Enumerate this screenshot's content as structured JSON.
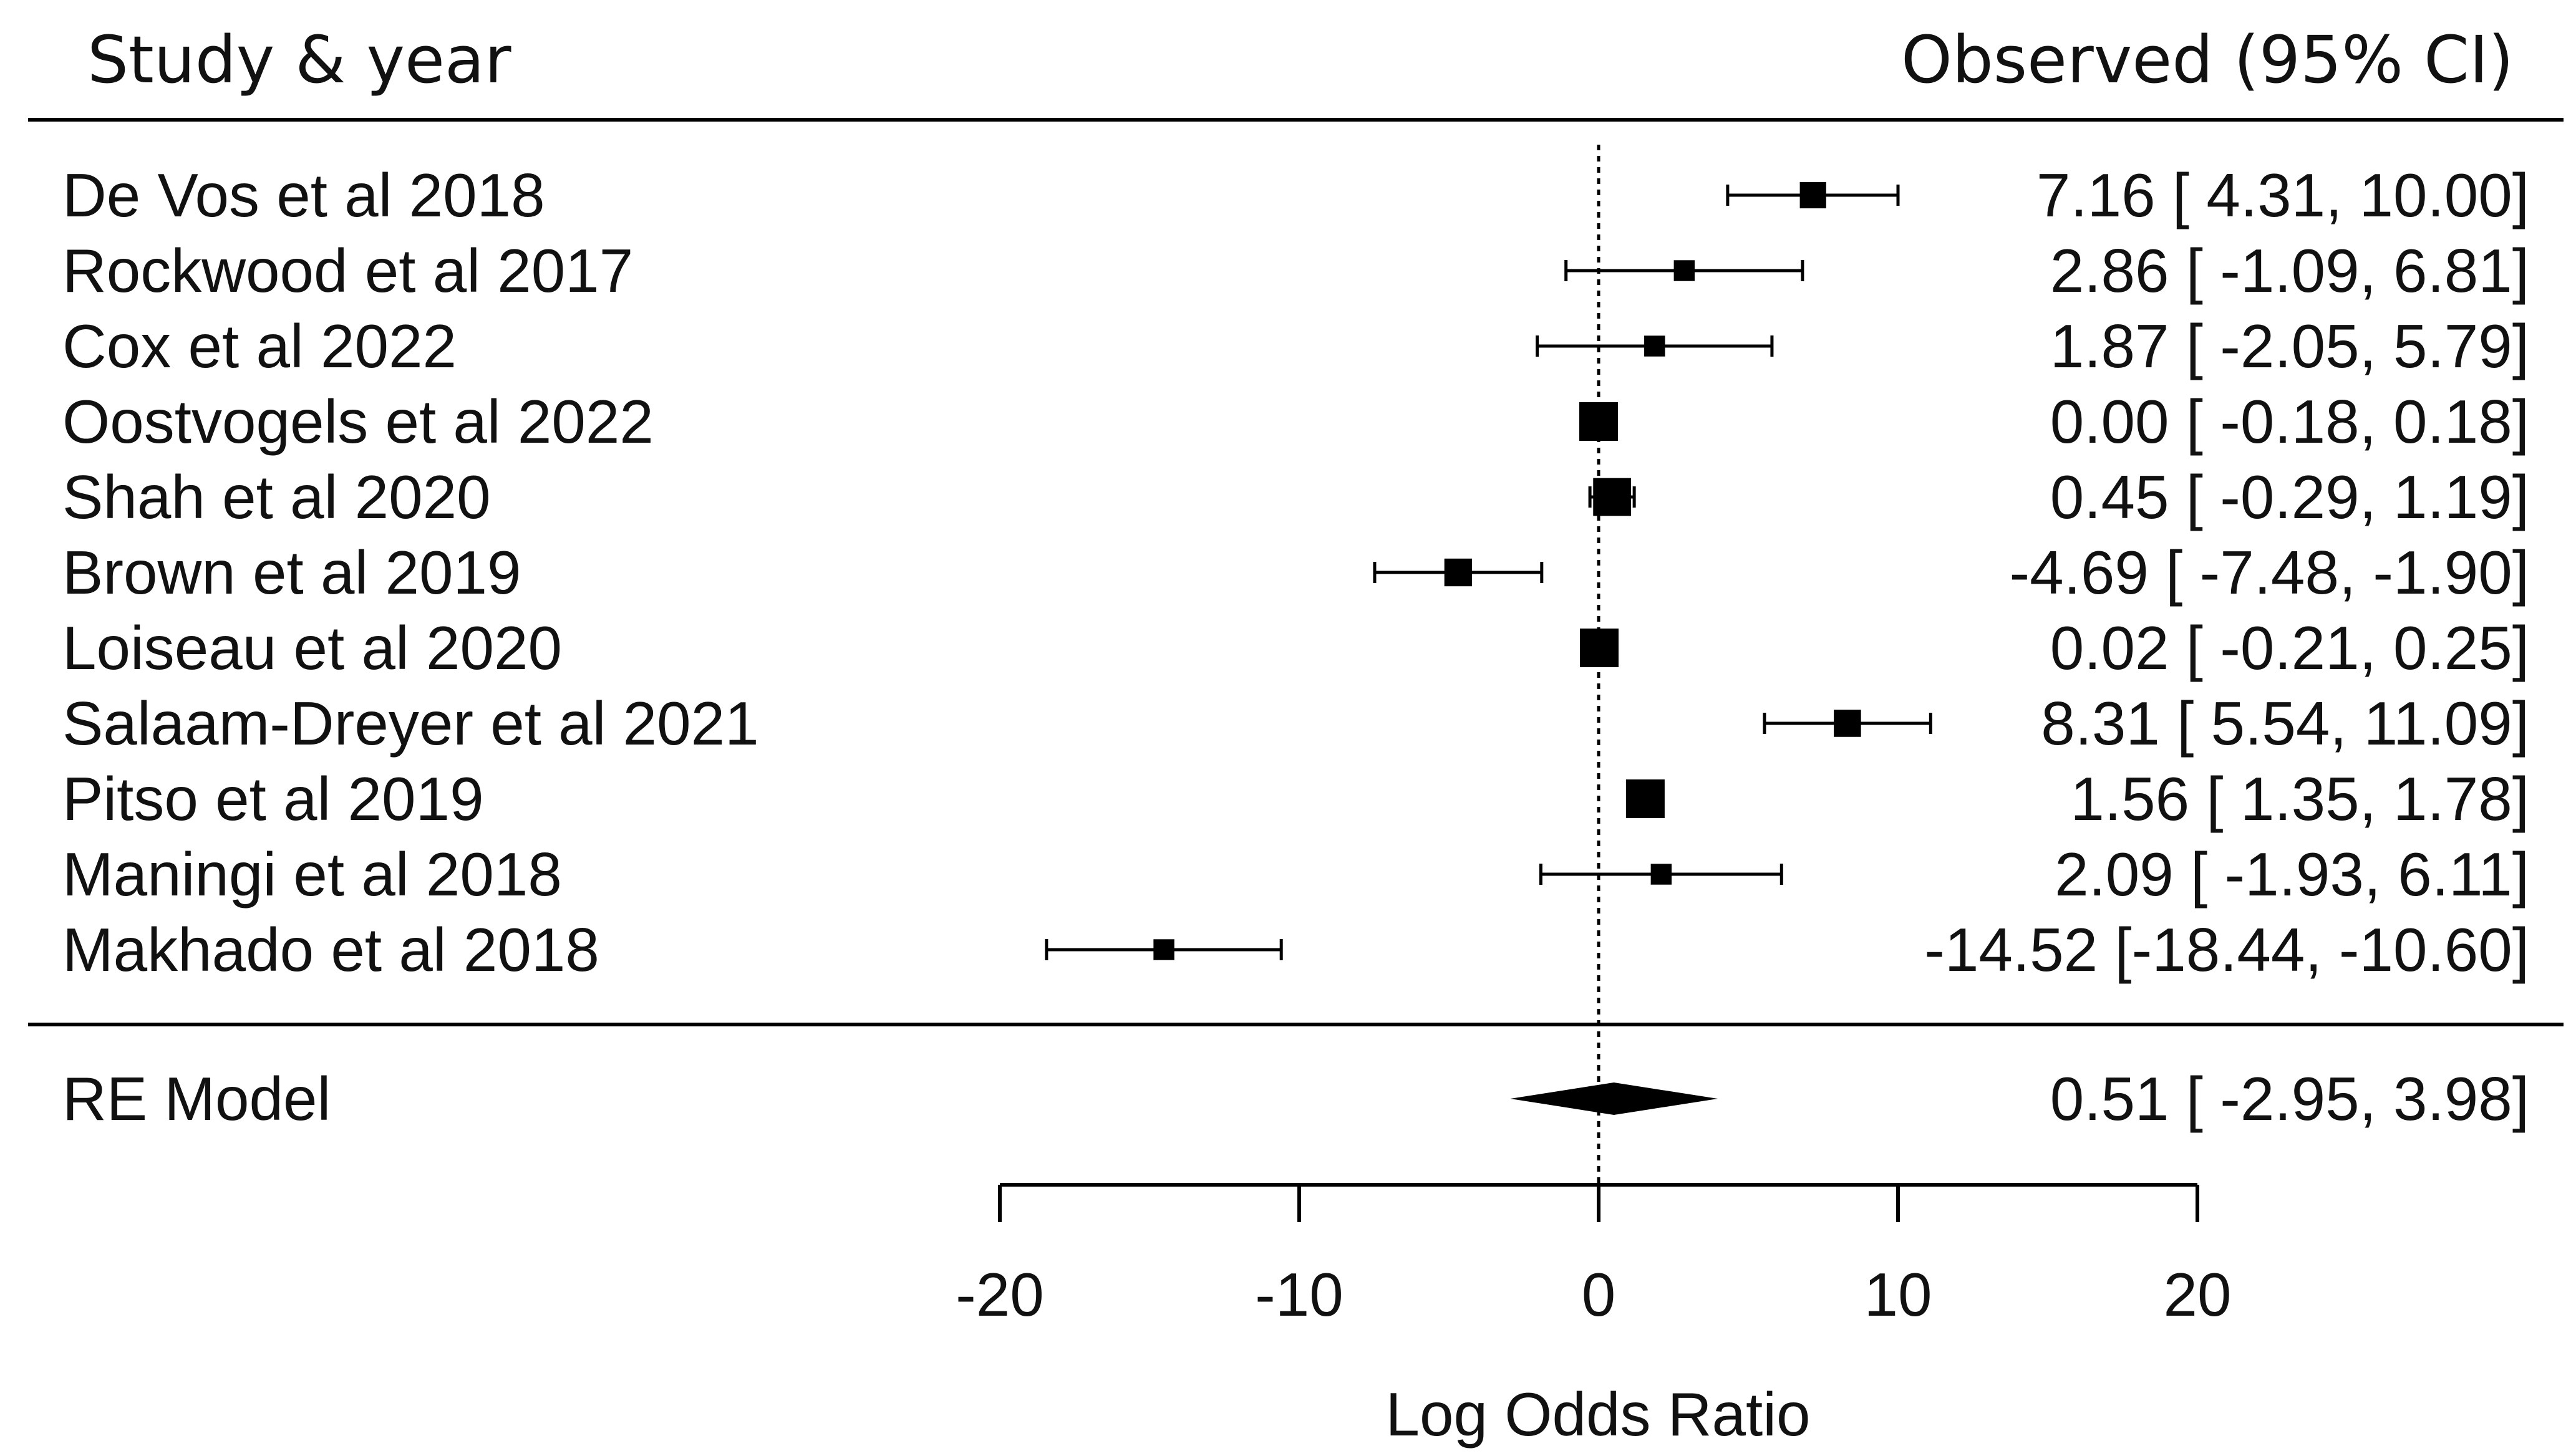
{
  "chart_data": {
    "type": "forest",
    "header_left": "Study & year",
    "header_right": "Observed (95% CI)",
    "xlabel": "Log Odds Ratio",
    "xlim": [
      -20,
      20
    ],
    "ticks": [
      -20,
      -10,
      0,
      10,
      20
    ],
    "tick_labels": [
      "-20",
      "-10",
      "0",
      "10",
      "20"
    ],
    "reference_line": 0,
    "colors": {
      "ink": "#000000"
    },
    "studies": [
      {
        "name": "De Vos et al 2018",
        "estimate": 7.16,
        "lower": 4.31,
        "upper": 10.0,
        "weight": 0.55,
        "ci_text": "7.16 [ 4.31, 10.00]"
      },
      {
        "name": "Rockwood et al 2017",
        "estimate": 2.86,
        "lower": -1.09,
        "upper": 6.81,
        "weight": 0.35,
        "ci_text": "2.86 [ -1.09, 6.81]"
      },
      {
        "name": "Cox et al 2022",
        "estimate": 1.87,
        "lower": -2.05,
        "upper": 5.79,
        "weight": 0.35,
        "ci_text": "1.87 [ -2.05, 5.79]"
      },
      {
        "name": "Oostvogels et al 2022",
        "estimate": 0.0,
        "lower": -0.18,
        "upper": 0.18,
        "weight": 1.0,
        "ci_text": "0.00 [ -0.18, 0.18]"
      },
      {
        "name": "Shah et al 2020",
        "estimate": 0.45,
        "lower": -0.29,
        "upper": 1.19,
        "weight": 0.97,
        "ci_text": "0.45 [ -0.29, 1.19]"
      },
      {
        "name": "Brown et al 2019",
        "estimate": -4.69,
        "lower": -7.48,
        "upper": -1.9,
        "weight": 0.6,
        "ci_text": "-4.69 [ -7.48, -1.90]"
      },
      {
        "name": "Loiseau et al 2020",
        "estimate": 0.02,
        "lower": -0.21,
        "upper": 0.25,
        "weight": 1.0,
        "ci_text": "0.02 [ -0.21, 0.25]"
      },
      {
        "name": "Salaam-Dreyer et al 2021",
        "estimate": 8.31,
        "lower": 5.54,
        "upper": 11.09,
        "weight": 0.58,
        "ci_text": "8.31 [ 5.54, 11.09]"
      },
      {
        "name": "Pitso et al 2019",
        "estimate": 1.56,
        "lower": 1.35,
        "upper": 1.78,
        "weight": 1.0,
        "ci_text": "1.56 [ 1.35, 1.78]"
      },
      {
        "name": "Maningi et al 2018",
        "estimate": 2.09,
        "lower": -1.93,
        "upper": 6.11,
        "weight": 0.35,
        "ci_text": "2.09 [ -1.93, 6.11]"
      },
      {
        "name": "Makhado et al 2018",
        "estimate": -14.52,
        "lower": -18.44,
        "upper": -10.6,
        "weight": 0.35,
        "ci_text": "-14.52 [-18.44, -10.60]"
      }
    ],
    "summary": {
      "name": "RE Model",
      "estimate": 0.51,
      "lower": -2.95,
      "upper": 3.98,
      "ci_text": "0.51 [ -2.95, 3.98]"
    }
  }
}
